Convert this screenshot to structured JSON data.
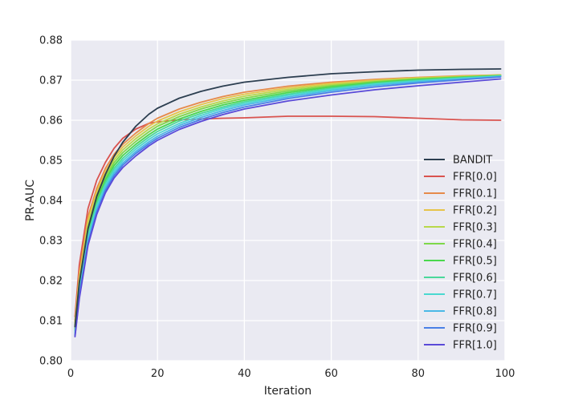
{
  "chart_data": {
    "type": "line",
    "title": "",
    "xlabel": "Iteration",
    "ylabel": "PR-AUC",
    "xlim": [
      0,
      100
    ],
    "ylim": [
      0.8,
      0.88
    ],
    "xticks": [
      0,
      20,
      40,
      60,
      80,
      100
    ],
    "xtick_labels": [
      "0",
      "20",
      "40",
      "60",
      "80",
      "100"
    ],
    "yticks": [
      0.8,
      0.81,
      0.82,
      0.83,
      0.84,
      0.85,
      0.86,
      0.87,
      0.88
    ],
    "ytick_labels": [
      "0.80",
      "0.81",
      "0.82",
      "0.83",
      "0.84",
      "0.85",
      "0.86",
      "0.87",
      "0.88"
    ],
    "grid": true,
    "background": "#eaeaf2",
    "legend_position": "lower-right",
    "x": [
      1,
      2,
      4,
      6,
      8,
      10,
      12,
      15,
      18,
      20,
      25,
      30,
      35,
      40,
      50,
      60,
      70,
      80,
      90,
      99
    ],
    "series": [
      {
        "name": "BANDIT",
        "color": "#2c3e50",
        "values": [
          0.8085,
          0.8195,
          0.833,
          0.841,
          0.8465,
          0.851,
          0.8545,
          0.8585,
          0.8615,
          0.863,
          0.8655,
          0.8672,
          0.8685,
          0.8695,
          0.8707,
          0.8716,
          0.8721,
          0.8725,
          0.8727,
          0.8728
        ]
      },
      {
        "name": "FFR[0.0]",
        "color": "#d9534f",
        "values": [
          0.811,
          0.824,
          0.838,
          0.845,
          0.8495,
          0.853,
          0.8555,
          0.8578,
          0.8592,
          0.8596,
          0.8601,
          0.8603,
          0.8605,
          0.8606,
          0.861,
          0.861,
          0.8609,
          0.8605,
          0.8601,
          0.86
        ]
      },
      {
        "name": "FFR[0.1]",
        "color": "#e68a4a",
        "values": [
          0.81,
          0.822,
          0.836,
          0.843,
          0.848,
          0.8515,
          0.854,
          0.8568,
          0.8592,
          0.8605,
          0.8628,
          0.8645,
          0.8659,
          0.867,
          0.8685,
          0.8695,
          0.8702,
          0.8707,
          0.8711,
          0.8713
        ]
      },
      {
        "name": "FFR[0.2]",
        "color": "#e6c44a",
        "values": [
          0.8095,
          0.821,
          0.835,
          0.8422,
          0.8472,
          0.8508,
          0.8533,
          0.8561,
          0.8585,
          0.8598,
          0.8621,
          0.8639,
          0.8654,
          0.8665,
          0.8681,
          0.8692,
          0.87,
          0.8706,
          0.871,
          0.8713
        ]
      },
      {
        "name": "FFR[0.3]",
        "color": "#b8d84a",
        "values": [
          0.809,
          0.82,
          0.834,
          0.8414,
          0.8465,
          0.8501,
          0.8526,
          0.8554,
          0.8578,
          0.8591,
          0.8615,
          0.8633,
          0.8648,
          0.866,
          0.8677,
          0.8689,
          0.8698,
          0.8705,
          0.8709,
          0.8712
        ]
      },
      {
        "name": "FFR[0.4]",
        "color": "#7ed84a",
        "values": [
          0.8085,
          0.8192,
          0.833,
          0.8406,
          0.8458,
          0.8494,
          0.8519,
          0.8547,
          0.8571,
          0.8585,
          0.8609,
          0.8628,
          0.8643,
          0.8655,
          0.8673,
          0.8686,
          0.8696,
          0.8703,
          0.8708,
          0.8712
        ]
      },
      {
        "name": "FFR[0.5]",
        "color": "#4ad84e",
        "values": [
          0.808,
          0.8185,
          0.8322,
          0.8398,
          0.8451,
          0.8487,
          0.8512,
          0.854,
          0.8564,
          0.8578,
          0.8603,
          0.8622,
          0.8638,
          0.865,
          0.8669,
          0.8683,
          0.8694,
          0.8702,
          0.8707,
          0.8711
        ]
      },
      {
        "name": "FFR[0.6]",
        "color": "#4ad89a",
        "values": [
          0.8075,
          0.8178,
          0.8314,
          0.8391,
          0.8444,
          0.848,
          0.8505,
          0.8534,
          0.8558,
          0.8572,
          0.8598,
          0.8617,
          0.8633,
          0.8646,
          0.8665,
          0.868,
          0.8692,
          0.87,
          0.8706,
          0.8711
        ]
      },
      {
        "name": "FFR[0.7]",
        "color": "#4ad8d0",
        "values": [
          0.807,
          0.8172,
          0.8307,
          0.8384,
          0.8437,
          0.8474,
          0.8499,
          0.8528,
          0.8552,
          0.8566,
          0.8592,
          0.8612,
          0.8629,
          0.8642,
          0.8662,
          0.8677,
          0.869,
          0.8698,
          0.8705,
          0.871
        ]
      },
      {
        "name": "FFR[0.8]",
        "color": "#4ab8e6",
        "values": [
          0.8065,
          0.8166,
          0.83,
          0.8377,
          0.8431,
          0.8468,
          0.8493,
          0.8522,
          0.8546,
          0.856,
          0.8587,
          0.8607,
          0.8624,
          0.8638,
          0.8658,
          0.8674,
          0.8687,
          0.8696,
          0.8703,
          0.8709
        ]
      },
      {
        "name": "FFR[0.9]",
        "color": "#4a80e6",
        "values": [
          0.8062,
          0.816,
          0.8294,
          0.8371,
          0.8425,
          0.8462,
          0.8488,
          0.8517,
          0.8541,
          0.8555,
          0.8582,
          0.8602,
          0.8619,
          0.8633,
          0.8654,
          0.867,
          0.8683,
          0.8693,
          0.8701,
          0.8708
        ]
      },
      {
        "name": "FFR[1.0]",
        "color": "#5a4ad8",
        "values": [
          0.806,
          0.8155,
          0.8288,
          0.8365,
          0.8419,
          0.8456,
          0.8482,
          0.8511,
          0.8536,
          0.855,
          0.8577,
          0.8597,
          0.8614,
          0.8628,
          0.8648,
          0.8663,
          0.8676,
          0.8686,
          0.8695,
          0.8703
        ]
      }
    ]
  }
}
